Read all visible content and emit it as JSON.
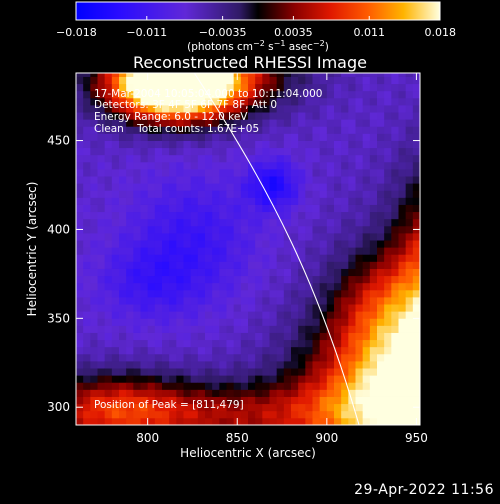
{
  "chart_data": {
    "type": "heatmap",
    "title": "Reconstructed RHESSI Image",
    "xlabel": "Heliocentric X (arcsec)",
    "ylabel": "Heliocentric Y (arcsec)",
    "xlim": [
      760,
      952
    ],
    "ylim": [
      290,
      488
    ],
    "x_ticks": [
      800,
      850,
      900,
      950
    ],
    "y_ticks": [
      300,
      350,
      400,
      450
    ],
    "colorbar": {
      "min": -0.018,
      "max": 0.018,
      "tick_values": [
        -0.018,
        -0.011,
        -0.0035,
        0.0035,
        0.011,
        0.018
      ],
      "tick_labels": [
        "−0.018",
        "−0.011",
        "−0.0035",
        "0.0035",
        "0.011",
        "0.018"
      ],
      "unit_prefix": "(photons cm",
      "unit_exp1": "−2",
      "unit_mid": " s",
      "unit_exp2": "−1",
      "unit_mid2": " asec",
      "unit_exp3": "−2",
      "unit_suffix": ")"
    },
    "annotations": [
      "17-Mar-2004 10:05:04.000 to 10:11:04.000",
      "Detectors: 3F 4F 5F 6F 7F 8F, Att 0",
      "Energy Range: 6.0 - 12.0 keV",
      "Clean    Total counts: 1.67E+05"
    ],
    "peak_label": "Position of Peak = [811,479]",
    "peak": [
      811,
      479
    ],
    "limb": [
      [
        826,
        488
      ],
      [
        870,
        420
      ],
      [
        895,
        370
      ],
      [
        918,
        290
      ]
    ],
    "blobs": [
      {
        "x": 815,
        "y": 482,
        "sx": 25,
        "sy": 14,
        "a": 0.034
      },
      {
        "x": 835,
        "y": 488,
        "sx": 35,
        "sy": 14,
        "a": 0.01
      },
      {
        "x": 935,
        "y": 310,
        "sx": 35,
        "sy": 30,
        "a": 0.016
      },
      {
        "x": 955,
        "y": 320,
        "sx": 30,
        "sy": 50,
        "a": 0.012
      },
      {
        "x": 960,
        "y": 380,
        "sx": 15,
        "sy": 40,
        "a": 0.01
      },
      {
        "x": 850,
        "y": 295,
        "sx": 70,
        "sy": 14,
        "a": 0.01
      },
      {
        "x": 780,
        "y": 300,
        "sx": 30,
        "sy": 14,
        "a": 0.01
      },
      {
        "x": 930,
        "y": 360,
        "sx": 20,
        "sy": 20,
        "a": 0.006
      },
      {
        "x": 870,
        "y": 425,
        "sx": 10,
        "sy": 10,
        "a": -0.008
      },
      {
        "x": 825,
        "y": 395,
        "sx": 25,
        "sy": 25,
        "a": -0.005
      },
      {
        "x": 800,
        "y": 370,
        "sx": 20,
        "sy": 15,
        "a": -0.004
      }
    ],
    "background": -0.0065,
    "grid": false
  },
  "footer": {
    "timestamp": "29-Apr-2022 11:56"
  }
}
